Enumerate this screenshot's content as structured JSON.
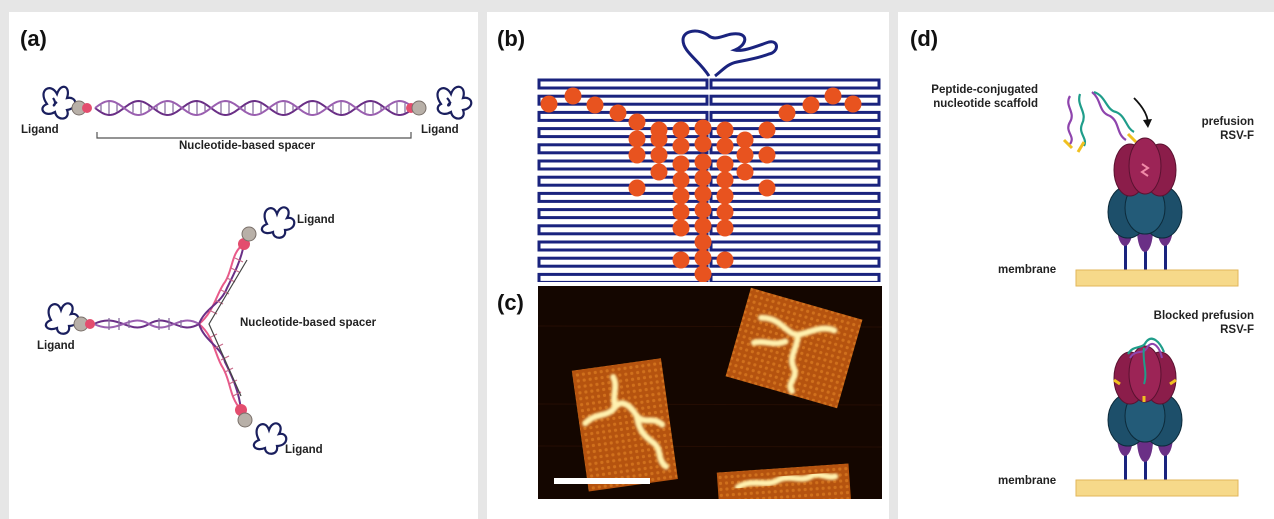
{
  "panel_a": {
    "label": "(a)",
    "linear": {
      "ligand_left": "Ligand",
      "ligand_right": "Ligand",
      "spacer": "Nucleotide-based spacer"
    },
    "branched": {
      "ligand_top": "Ligand",
      "ligand_left": "Ligand",
      "ligand_bottom": "Ligand",
      "spacer": "Nucleotide-based spacer"
    }
  },
  "panel_b": {
    "label": "(b)"
  },
  "panel_c": {
    "label": "(c)"
  },
  "panel_d": {
    "label": "(d)",
    "scaffold_label_line1": "Peptide-conjugated",
    "scaffold_label_line2": "nucleotide scaffold",
    "prefusion_line1": "prefusion",
    "prefusion_line2": "RSV-F",
    "blocked_line1": "Blocked prefusion",
    "blocked_line2": "RSV-F",
    "membrane_top": "membrane",
    "membrane_bottom": "membrane"
  },
  "colors": {
    "navy": "#1a237e",
    "orange": "#e8531f",
    "purple": "#6a2f86",
    "pink": "#e85a8a",
    "maroon": "#8b1d4a",
    "teal": "#1d4f6a",
    "membrane": "#f6d98a"
  }
}
